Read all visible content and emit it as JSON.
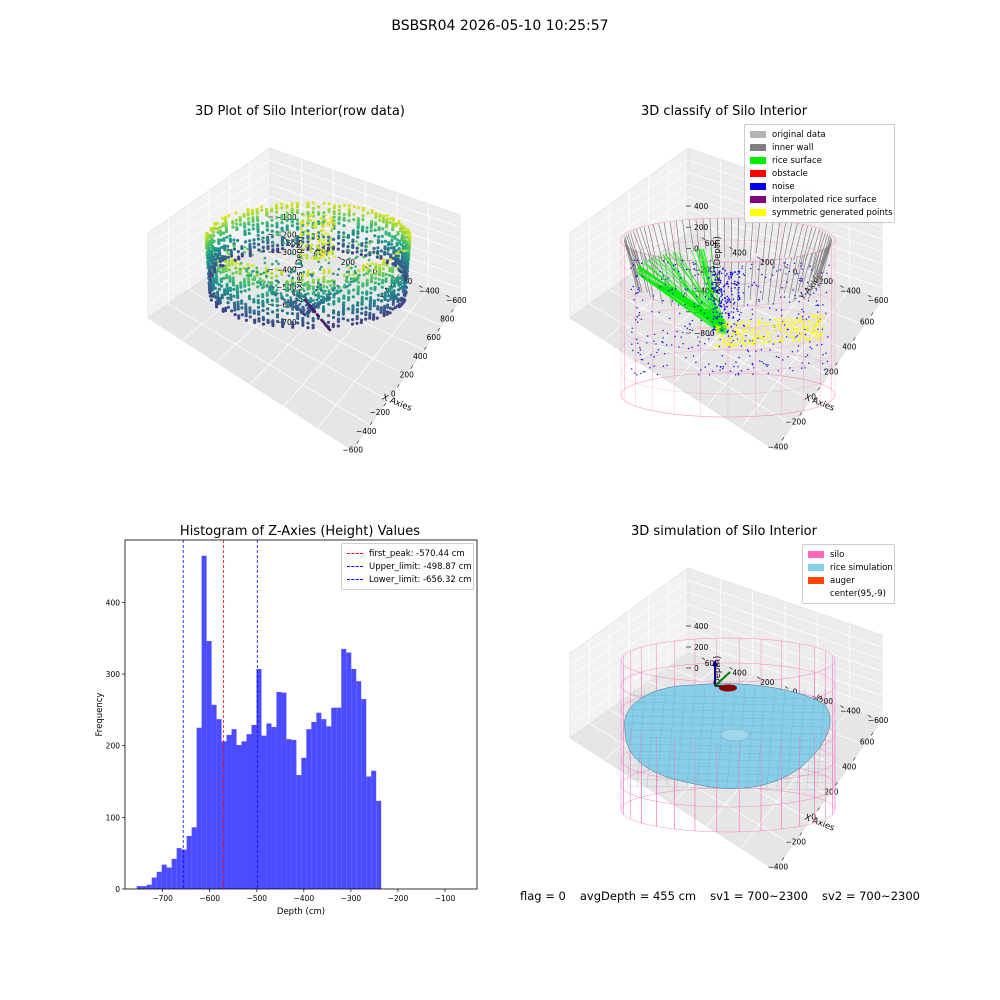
{
  "page": {
    "title": "BSBSR04 2026-05-10 10:25:57"
  },
  "colors": {
    "original_data": "#b3b3b3",
    "inner_wall": "#808080",
    "rice_surface": "#00ee00",
    "obstacle": "#ff0000",
    "noise": "#0000ee",
    "interpolated_rice_surface": "#800080",
    "symmetric_generated_points": "#ffff00",
    "silo": "#ff69b4",
    "rice_simulation": "#87ceeb",
    "auger": "#ff4500",
    "histogram_bar": "#4b4bff"
  },
  "chart_data": [
    {
      "type": "scatter",
      "id": "raw",
      "title": "3D Plot of Silo Interior(row data)",
      "xlabel": "X Axies",
      "ylabel": "Y Axies",
      "zlabel": "Z Axies (Depth)",
      "xticks": [
        "−600",
        "−400",
        "−200",
        "0",
        "200",
        "400",
        "600",
        "800"
      ],
      "yticks": [
        "−600",
        "−400",
        "−200",
        "0",
        "200",
        "400",
        "600"
      ],
      "zticks": [
        "−100",
        "−200",
        "−300",
        "−400",
        "−500",
        "−600",
        "−700"
      ],
      "colormap": "viridis"
    },
    {
      "type": "scatter",
      "id": "classify",
      "title": "3D classify of Silo Interior",
      "xlabel": "X Axies",
      "ylabel": "Y Axies",
      "zlabel": "Z Axies (Depth)",
      "xticks": [
        "−400",
        "−200",
        "0",
        "200",
        "400",
        "600"
      ],
      "yticks": [
        "−600",
        "−400",
        "−200",
        "0",
        "200",
        "400",
        "600"
      ],
      "zticks": [
        "400",
        "200",
        "0",
        "−200",
        "−400",
        "−600",
        "−800"
      ],
      "legend": [
        {
          "label": "original data",
          "color": "#b3b3b3"
        },
        {
          "label": "inner wall",
          "color": "#808080"
        },
        {
          "label": "rice surface",
          "color": "#00ee00"
        },
        {
          "label": "obstacle",
          "color": "#ff0000"
        },
        {
          "label": "noise",
          "color": "#0000ee"
        },
        {
          "label": "interpolated rice surface",
          "color": "#800080"
        },
        {
          "label": "symmetric generated points",
          "color": "#ffff00"
        }
      ]
    },
    {
      "type": "bar",
      "id": "hist",
      "title": "Histogram of Z-Axies (Height) Values",
      "xlabel": "Depth (cm)",
      "ylabel": "Frequency",
      "xlim": [
        -780,
        -32
      ],
      "ylim": [
        0,
        487
      ],
      "xticks": [
        -700,
        -600,
        -500,
        -400,
        -300,
        -200,
        -100
      ],
      "xtick_labels": [
        "−700",
        "−600",
        "−500",
        "−400",
        "−300",
        "−200",
        "−100"
      ],
      "yticks": [
        0,
        100,
        200,
        300,
        400
      ],
      "yticks_labels": [
        "0",
        "100",
        "200",
        "300",
        "400"
      ],
      "bin_start": -755,
      "bin_width": 10.6,
      "values": [
        4,
        4,
        6,
        16,
        24,
        34,
        30,
        42,
        57,
        55,
        74,
        86,
        225,
        465,
        346,
        257,
        237,
        206,
        215,
        223,
        201,
        206,
        216,
        229,
        307,
        214,
        231,
        226,
        275,
        274,
        209,
        208,
        159,
        183,
        223,
        233,
        246,
        237,
        227,
        253,
        253,
        335,
        330,
        307,
        290,
        265,
        157,
        165,
        123
      ],
      "vlines": [
        {
          "x": -570.44,
          "color": "#ff0000",
          "label": "first_peak: -570.44 cm"
        },
        {
          "x": -498.87,
          "color": "#0000ff",
          "label": "Upper_limit: -498.87 cm"
        },
        {
          "x": -656.32,
          "color": "#0000ff",
          "label": "Lower_limit: -656.32 cm"
        }
      ]
    },
    {
      "type": "area",
      "id": "sim",
      "title": "3D simulation of Silo Interior",
      "xlabel": "X Axies",
      "ylabel": "Y Axies",
      "zlabel": "Z Axies (Depth)",
      "xticks": [
        "−400",
        "−200",
        "0",
        "200",
        "400",
        "600"
      ],
      "yticks": [
        "−600",
        "−400",
        "−200",
        "0",
        "200",
        "400",
        "600"
      ],
      "zticks": [
        "400",
        "200",
        "0",
        "−200",
        "−400",
        "−600",
        "−800"
      ],
      "legend": [
        {
          "label": "silo",
          "color": "#ff69b4"
        },
        {
          "label": "rice simulation",
          "color": "#87ceeb"
        },
        {
          "label": "auger",
          "color": "#ff4500"
        },
        {
          "label": "center(95,-9)",
          "color": "#ffffff"
        }
      ]
    }
  ],
  "footer": {
    "flag": "flag = 0",
    "avg_depth": "avgDepth = 455 cm",
    "sv1": "sv1 = 700~2300",
    "sv2": "sv2 = 700~2300"
  }
}
